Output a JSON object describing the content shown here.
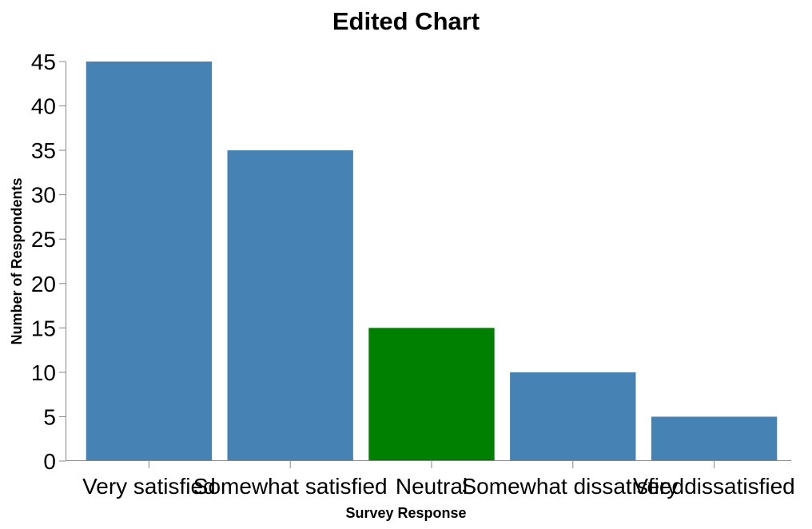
{
  "chart_data": {
    "type": "bar",
    "title": "Edited Chart",
    "xlabel": "Survey Response",
    "ylabel": "Number of Respondents",
    "categories": [
      "Very satisfied",
      "Somewhat satisfied",
      "Neutral",
      "Somewhat dissatisfied",
      "Very dissatisfied"
    ],
    "values": [
      45,
      35,
      15,
      10,
      5
    ],
    "bar_colors": [
      "#4682b4",
      "#4682b4",
      "#008000",
      "#4682b4",
      "#4682b4"
    ],
    "ylim": [
      0,
      45
    ],
    "yticks": [
      0,
      5,
      10,
      15,
      20,
      25,
      30,
      35,
      40,
      45
    ],
    "grid": false,
    "legend": "none"
  }
}
